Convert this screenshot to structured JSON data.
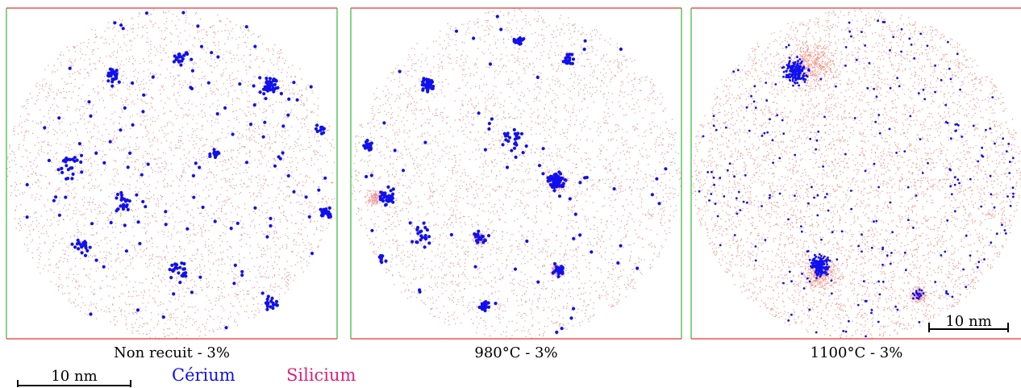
{
  "panels": [
    {
      "label": "Non recuit - 3%"
    },
    {
      "label": "980°C - 3%"
    },
    {
      "label": "1100°C - 3%",
      "scale_bar": "10 nm"
    }
  ],
  "scale_bar": "10 nm",
  "legend": [
    "Cérium",
    "Silicium"
  ]
}
